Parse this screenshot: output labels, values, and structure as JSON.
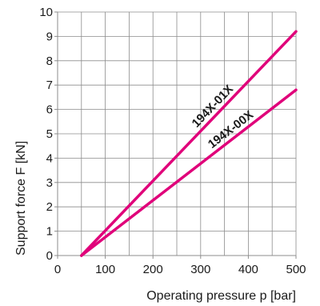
{
  "chart_data": {
    "type": "line",
    "title": "",
    "xlabel": "Operating pressure p [bar]",
    "ylabel": "Support force F [kN]",
    "xlim": [
      0,
      500
    ],
    "ylim": [
      0,
      10
    ],
    "xticks": [
      0,
      100,
      200,
      300,
      400,
      500
    ],
    "yticks": [
      0,
      1,
      2,
      3,
      4,
      5,
      6,
      7,
      8,
      9,
      10
    ],
    "grid": true,
    "series": [
      {
        "name": "194X-01X",
        "color": "#e0007a",
        "points": [
          [
            50,
            0
          ],
          [
            500,
            9.2
          ]
        ]
      },
      {
        "name": "194X-00X",
        "color": "#e0007a",
        "points": [
          [
            50,
            0
          ],
          [
            500,
            6.8
          ]
        ]
      }
    ]
  }
}
